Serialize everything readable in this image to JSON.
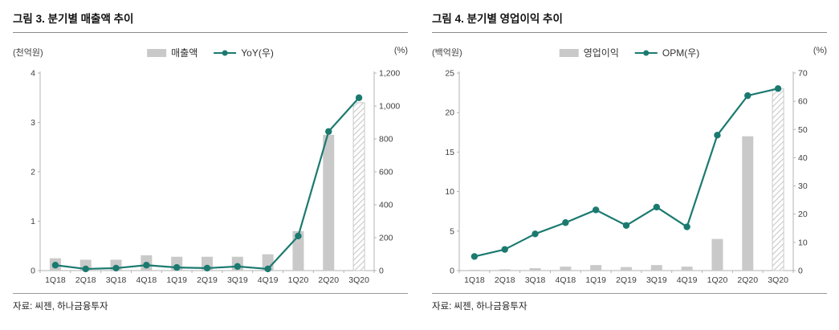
{
  "colors": {
    "teal": "#1b7a70",
    "bar_gray": "#c9c9c9",
    "axis": "#b3b3b3",
    "tick_text": "#404040",
    "rule": "#8a8a8a"
  },
  "chart_data": [
    {
      "type": "bar+line",
      "title": "그림 3. 분기별 매출액 추이",
      "source": "자료: 씨젠, 하나금융투자",
      "categories": [
        "1Q18",
        "2Q18",
        "3Q18",
        "4Q18",
        "1Q19",
        "2Q19",
        "3Q19",
        "4Q19",
        "1Q20",
        "2Q20",
        "3Q20"
      ],
      "bar_series": {
        "name": "매출액",
        "axis": "left",
        "values": [
          0.25,
          0.22,
          0.22,
          0.31,
          0.28,
          0.28,
          0.28,
          0.33,
          0.8,
          2.75,
          3.4
        ],
        "last_bar_hatched": true
      },
      "line_series": {
        "name": "YoY(우)",
        "axis": "right",
        "values": [
          33,
          10,
          15,
          33,
          19,
          15,
          25,
          10,
          210,
          845,
          1050
        ]
      },
      "left_axis": {
        "unit": "(천억원)",
        "range": [
          0,
          4
        ],
        "ticks": [
          0,
          1,
          2,
          3,
          4
        ]
      },
      "right_axis": {
        "unit": "(%)",
        "range": [
          0,
          1200
        ],
        "ticks": [
          0,
          200,
          400,
          600,
          800,
          1000,
          1200
        ]
      },
      "legend_position": "top-center",
      "grid": false
    },
    {
      "type": "bar+line",
      "title": "그림 4. 분기별 영업이익 추이",
      "source": "자료: 씨젠, 하나금융투자",
      "categories": [
        "1Q18",
        "2Q18",
        "3Q18",
        "4Q18",
        "1Q19",
        "2Q19",
        "3Q19",
        "4Q19",
        "1Q20",
        "2Q20",
        "3Q20"
      ],
      "bar_series": {
        "name": "영업이익",
        "axis": "left",
        "values": [
          0.1,
          0.15,
          0.3,
          0.5,
          0.7,
          0.45,
          0.7,
          0.5,
          4.0,
          17.0,
          23.0
        ],
        "last_bar_hatched": true
      },
      "line_series": {
        "name": "OPM(우)",
        "axis": "right",
        "values": [
          5,
          7.5,
          13,
          17,
          21.5,
          16,
          22.5,
          15.5,
          48,
          62,
          64.5
        ]
      },
      "left_axis": {
        "unit": "(백억원)",
        "range": [
          0,
          25
        ],
        "ticks": [
          0,
          5,
          10,
          15,
          20,
          25
        ]
      },
      "right_axis": {
        "unit": "(%)",
        "range": [
          0,
          70
        ],
        "ticks": [
          0,
          10,
          20,
          30,
          40,
          50,
          60,
          70
        ]
      },
      "legend_position": "top-center",
      "grid": false
    }
  ]
}
